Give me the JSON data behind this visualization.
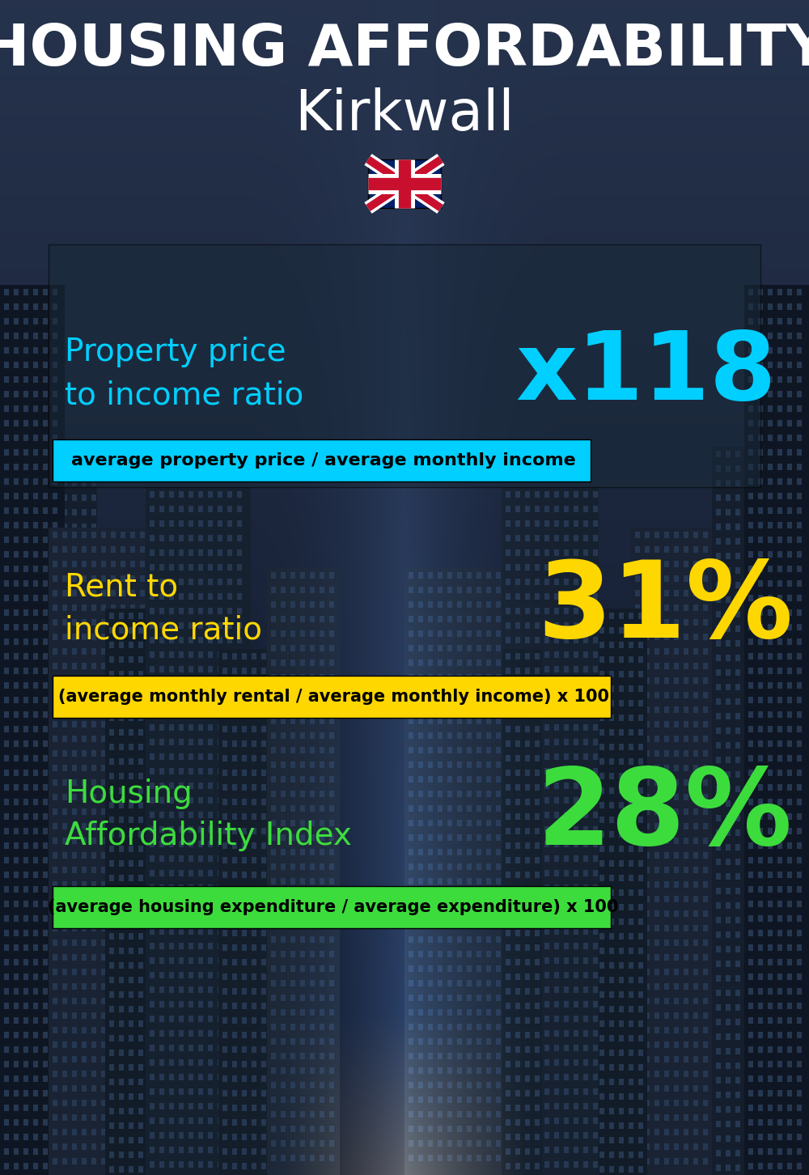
{
  "title_line1": "HOUSING AFFORDABILITY",
  "title_line2": "Kirkwall",
  "flag_emoji": "🇬🇧",
  "section1_label": "Property price\nto income ratio",
  "section1_value": "x118",
  "section1_sublabel": "average property price / average monthly income",
  "section1_label_color": "#00cfff",
  "section1_value_color": "#00cfff",
  "section1_sub_bg": "#00cfff",
  "section2_label": "Rent to\nincome ratio",
  "section2_value": "31%",
  "section2_sublabel": "(average monthly rental / average monthly income) x 100",
  "section2_label_color": "#ffd700",
  "section2_value_color": "#ffd700",
  "section2_sub_bg": "#ffd700",
  "section3_label": "Housing\nAffordability Index",
  "section3_value": "28%",
  "section3_sublabel": "(average housing expenditure / average expenditure) x 100",
  "section3_label_color": "#3ddc3d",
  "section3_value_color": "#3ddc3d",
  "section3_sub_bg": "#3ddc3d",
  "bg_color": "#0a1220",
  "title_color": "#ffffff",
  "sublabel_text_color": "#000000",
  "panel1_bg": "#1a2535",
  "panel1_alpha": 0.55
}
